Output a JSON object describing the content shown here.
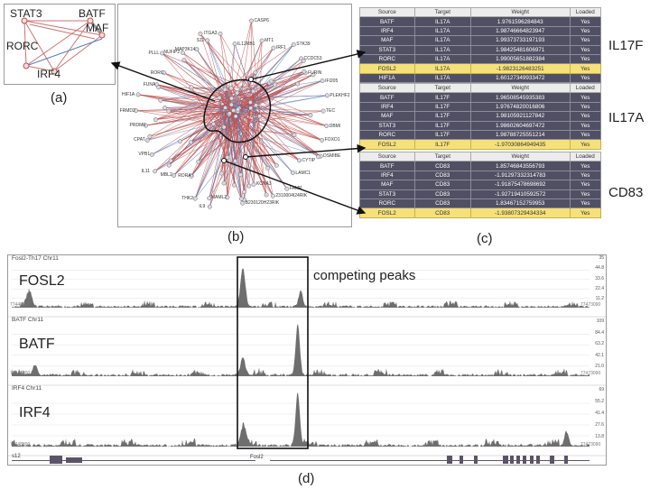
{
  "panel_labels": {
    "a": "(a)",
    "b": "(b)",
    "c": "(c)",
    "d": "(d)"
  },
  "network_a": {
    "nodes": [
      "STAT3",
      "BATF",
      "MAF",
      "RORC",
      "IRF4"
    ]
  },
  "network_b": {
    "node_labels": [
      "IL12RB1",
      "CASP6",
      "MT1",
      "IRF1",
      "STK39",
      "CCDC53",
      "FURIN",
      "IFI205",
      "PLEKHF2",
      "TEC",
      "DBMI",
      "FOXO1",
      "DSMIBE",
      "CYTIP",
      "LAMC1",
      "FAMP",
      "2310004I24RIK",
      "KCNA3",
      "B230120H23RIK",
      "MAML2",
      "IL9",
      "THK2",
      "RORA",
      "MBL2",
      "IL11",
      "VPB1",
      "CPAT",
      "PRDM6",
      "FRMD2",
      "HIF1A",
      "FUNA",
      "RORC",
      "PLLL",
      "NUFIP2",
      "MAP3K14",
      "S11",
      "ITGA3"
    ]
  },
  "tables": [
    {
      "side_label": "IL17F",
      "headers": [
        "Source",
        "Target",
        "Weight",
        "Loaded"
      ],
      "rows": [
        {
          "source": "BATF",
          "target": "IL17A",
          "weight": "1.9761596284843",
          "loaded": "Yes",
          "hl": false
        },
        {
          "source": "IRF4",
          "target": "IL17A",
          "weight": "1.98746664823947",
          "loaded": "Yes",
          "hl": false
        },
        {
          "source": "MAF",
          "target": "IL17A",
          "weight": "1.99373733197193",
          "loaded": "Yes",
          "hl": false
        },
        {
          "source": "STAT3",
          "target": "IL17A",
          "weight": "1.98425481606971",
          "loaded": "Yes",
          "hl": false
        },
        {
          "source": "RORC",
          "target": "IL17A",
          "weight": "1.99005651882384",
          "loaded": "Yes",
          "hl": false
        },
        {
          "source": "FOSL2",
          "target": "IL17A",
          "weight": "-1.9823126483251",
          "loaded": "Yes",
          "hl": true
        },
        {
          "source": "HIF1A",
          "target": "IL17A",
          "weight": "1.60127349933472",
          "loaded": "Yes",
          "hl": false
        }
      ]
    },
    {
      "side_label": "IL17A",
      "headers": [
        "Source",
        "Target",
        "Weight",
        "Loaded"
      ],
      "rows": [
        {
          "source": "BATF",
          "target": "IL17F",
          "weight": "1.96508545935383",
          "loaded": "Yes",
          "hl": false
        },
        {
          "source": "IRF4",
          "target": "IL17F",
          "weight": "1.97674820016806",
          "loaded": "Yes",
          "hl": false
        },
        {
          "source": "MAF",
          "target": "IL17F",
          "weight": "1.98105921127842",
          "loaded": "Yes",
          "hl": false
        },
        {
          "source": "STAT3",
          "target": "IL17F",
          "weight": "1.98602604697472",
          "loaded": "Yes",
          "hl": false
        },
        {
          "source": "RORC",
          "target": "IL17F",
          "weight": "1.98788725551214",
          "loaded": "Yes",
          "hl": false
        },
        {
          "source": "FOSL2",
          "target": "IL17F",
          "weight": "-1.97030864949435",
          "loaded": "Yes",
          "hl": true
        }
      ]
    },
    {
      "side_label": "CD83",
      "headers": [
        "Source",
        "Target",
        "Weight",
        "Loaded"
      ],
      "rows": [
        {
          "source": "BATF",
          "target": "CD83",
          "weight": "1.85746843556793",
          "loaded": "Yes",
          "hl": false
        },
        {
          "source": "IRF4",
          "target": "CD83",
          "weight": "-1.91297332314783",
          "loaded": "Yes",
          "hl": false
        },
        {
          "source": "MAF",
          "target": "CD83",
          "weight": "-1.91875478698692",
          "loaded": "Yes",
          "hl": false
        },
        {
          "source": "STAT3",
          "target": "CD83",
          "weight": "-1.92719410592572",
          "loaded": "Yes",
          "hl": false
        },
        {
          "source": "RORC",
          "target": "CD83",
          "weight": "1.83467152759953",
          "loaded": "Yes",
          "hl": false
        },
        {
          "source": "FOSL2",
          "target": "CD83",
          "weight": "-1.93807329434334",
          "loaded": "Yes",
          "hl": true
        }
      ]
    }
  ],
  "genome_tracks": {
    "annotation": "competing peaks",
    "tracks": [
      {
        "name": "Fosl2-Th17 Chr11",
        "big": "FOSL2",
        "scale": [
          "35",
          "44.8",
          "33.6",
          "22.4",
          "11.2"
        ],
        "start": "77448800",
        "end": "77473090"
      },
      {
        "name": "BATF Chr11",
        "big": "BATF",
        "scale": [
          "109",
          "84.4",
          "63.2",
          "42.1",
          "21.0"
        ],
        "start": "77448800",
        "end": "77473090"
      },
      {
        "name": "IRF4 Chr11",
        "big": "IRF4",
        "scale": [
          "69",
          "55.2",
          "41.4",
          "27.6",
          "13.8"
        ],
        "start": "77448800",
        "end": "77473090"
      }
    ],
    "genes": [
      "s12",
      "Fosl2"
    ]
  },
  "colors": {
    "edge_red": "#c0504d",
    "edge_blue": "#4f81bd",
    "edge_grey": "#999999",
    "table_dark": "#514f63",
    "table_hl": "#f5e07a",
    "signal": "#6e6e6e"
  }
}
